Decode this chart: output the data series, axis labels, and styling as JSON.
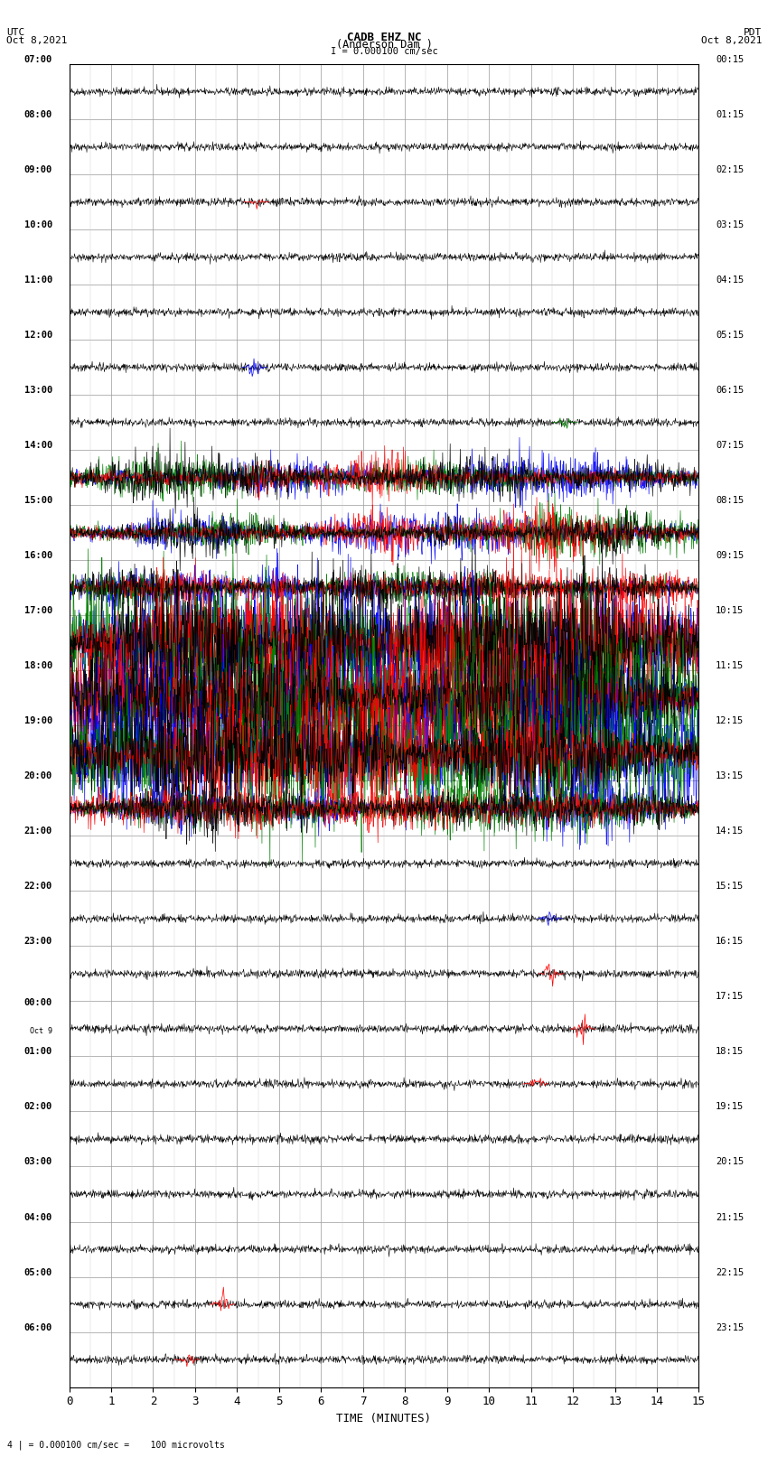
{
  "title_line1": "CADB EHZ NC",
  "title_line2": "(Anderson Dam )",
  "title_line3": "I = 0.000100 cm/sec",
  "left_header_line1": "UTC",
  "left_header_line2": "Oct 8,2021",
  "right_header_line1": "PDT",
  "right_header_line2": "Oct 8,2021",
  "xlabel": "TIME (MINUTES)",
  "footer": "4 | = 0.000100 cm/sec =    100 microvolts",
  "utc_labels": [
    "07:00",
    "08:00",
    "09:00",
    "10:00",
    "11:00",
    "12:00",
    "13:00",
    "14:00",
    "15:00",
    "16:00",
    "17:00",
    "18:00",
    "19:00",
    "20:00",
    "21:00",
    "22:00",
    "23:00",
    "Oct 9\n00:00",
    "01:00",
    "02:00",
    "03:00",
    "04:00",
    "05:00",
    "06:00"
  ],
  "pdt_labels": [
    "00:15",
    "01:15",
    "02:15",
    "03:15",
    "04:15",
    "05:15",
    "06:15",
    "07:15",
    "08:15",
    "09:15",
    "10:15",
    "11:15",
    "12:15",
    "13:15",
    "14:15",
    "15:15",
    "16:15",
    "17:15",
    "18:15",
    "19:15",
    "20:15",
    "21:15",
    "22:15",
    "23:15"
  ],
  "n_rows": 24,
  "n_minutes": 15,
  "bg_color": "#ffffff",
  "colors": [
    "blue",
    "green",
    "red",
    "black"
  ]
}
